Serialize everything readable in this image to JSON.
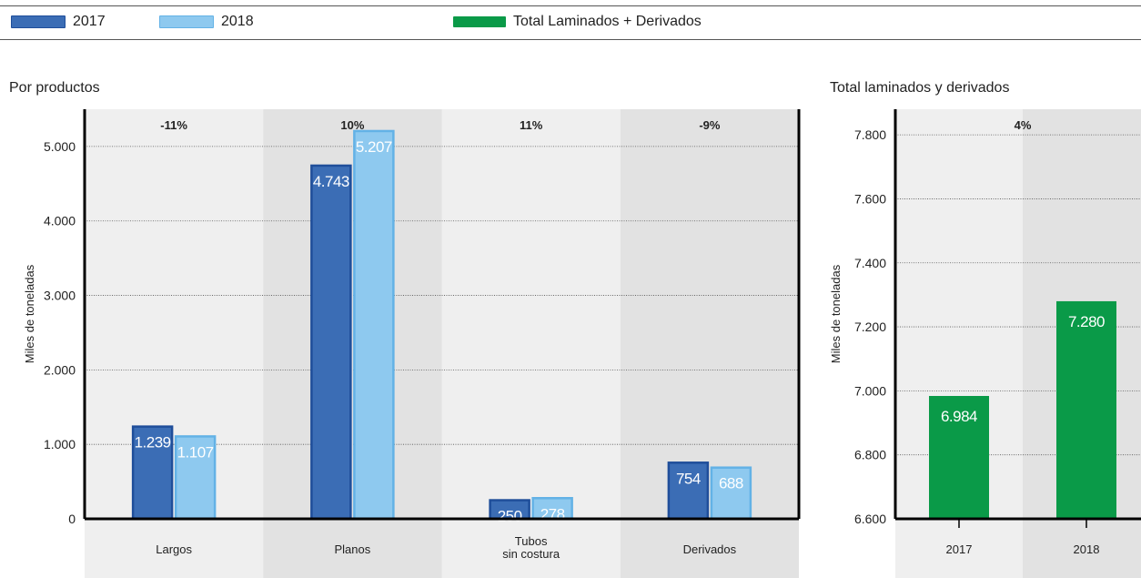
{
  "legend": {
    "items": [
      {
        "label": "2017",
        "color": "#3b6db5",
        "border": "#1f4e9a"
      },
      {
        "label": "2018",
        "color": "#8ec9ef",
        "border": "#63b2e6"
      },
      {
        "label": "Total Laminados + Derivados",
        "color": "#0a9a48",
        "border": "#0a9a48"
      }
    ]
  },
  "chart_data": [
    {
      "type": "bar",
      "title": "Por productos",
      "ylabel": "Miles de toneladas",
      "ylim": [
        0,
        5500
      ],
      "yticks": [
        0,
        1000,
        2000,
        3000,
        4000,
        5000
      ],
      "ytick_labels": [
        "0",
        "1.000",
        "2.000",
        "3.000",
        "4.000",
        "5.000"
      ],
      "categories": [
        "Largos",
        "Planos",
        "Tubos sin costura",
        "Derivados"
      ],
      "category_labels": [
        [
          "Largos"
        ],
        [
          "Planos"
        ],
        [
          "Tubos",
          "sin costura"
        ],
        [
          "Derivados"
        ]
      ],
      "change_labels": [
        "-11%",
        "10%",
        "11%",
        "-9%"
      ],
      "series": [
        {
          "name": "2017",
          "values": [
            1239,
            4743,
            250,
            754
          ],
          "labels": [
            "1.239",
            "4.743",
            "250",
            "754"
          ],
          "color": "#3b6db5",
          "border": "#1f4e9a"
        },
        {
          "name": "2018",
          "values": [
            1107,
            5207,
            278,
            688
          ],
          "labels": [
            "1.107",
            "5.207",
            "278",
            "688"
          ],
          "color": "#8ec9ef",
          "border": "#63b2e6"
        }
      ],
      "grid": true
    },
    {
      "type": "bar",
      "title": "Total laminados y derivados",
      "ylabel": "Miles de toneladas",
      "ylim": [
        6600,
        7880
      ],
      "yticks": [
        6600,
        6800,
        7000,
        7200,
        7400,
        7600,
        7800
      ],
      "ytick_labels": [
        "6.600",
        "6.800",
        "7.000",
        "7.200",
        "7.400",
        "7.600",
        "7.800"
      ],
      "categories": [
        "2017",
        "2018"
      ],
      "change_labels": [
        "4%"
      ],
      "series": [
        {
          "name": "Total Laminados + Derivados",
          "values": [
            6984,
            7280
          ],
          "labels": [
            "6.984",
            "7.280"
          ],
          "color": "#0a9a48"
        }
      ],
      "grid": true
    }
  ]
}
